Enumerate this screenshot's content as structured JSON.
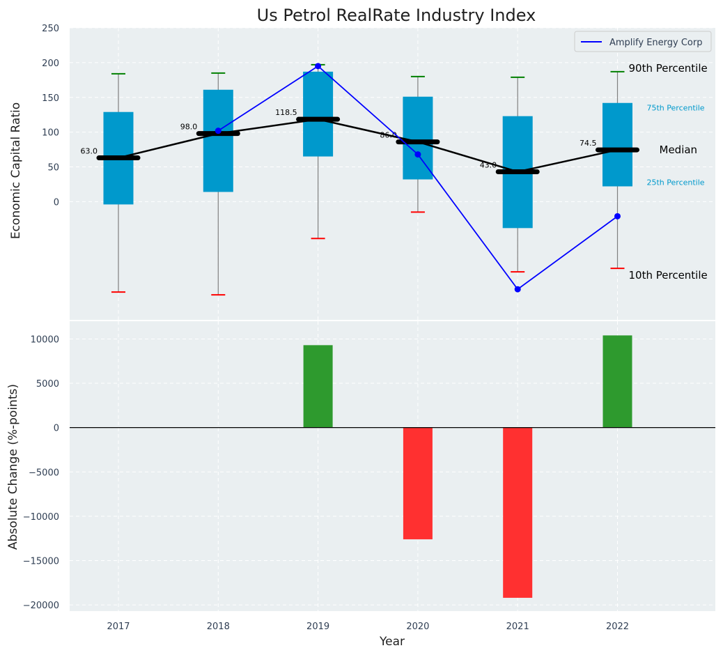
{
  "chart_data": [
    {
      "type": "box",
      "title": "Us Petrol RealRate Industry Index",
      "xlabel": "",
      "ylabel": "Economic Capital Ratio",
      "ylim": [
        -170,
        250
      ],
      "yticks": [
        0,
        50,
        100,
        150,
        200,
        250
      ],
      "grid": true,
      "categories": [
        "2017",
        "2018",
        "2019",
        "2020",
        "2021",
        "2022"
      ],
      "p10": [
        -130,
        -134,
        -53,
        -15,
        -101,
        -96
      ],
      "p25": [
        -4,
        14,
        65,
        32,
        -38,
        22
      ],
      "median": [
        63.0,
        98.0,
        118.5,
        86.0,
        43.0,
        74.5
      ],
      "p75": [
        129,
        161,
        187,
        151,
        123,
        142
      ],
      "p90": [
        184,
        185,
        197,
        180,
        179,
        187
      ],
      "median_labels": [
        "63.0",
        "98.0",
        "118.5",
        "86.0",
        "43.0",
        "74.5"
      ],
      "company_series": {
        "name": "Amplify Energy Corp",
        "values": [
          null,
          102,
          195,
          68,
          -126,
          -21
        ]
      },
      "legend": {
        "position": "top-right",
        "entries": [
          "Amplify Energy Corp"
        ]
      },
      "annotations": {
        "p90": "90th Percentile",
        "p75": "75th Percentile",
        "median": "Median",
        "p25": "25th Percentile",
        "p10": "10th Percentile"
      },
      "colors": {
        "background": "#eaeff1",
        "box": "#0099cc",
        "median": "#000000",
        "p90_cap": "#008000",
        "p10_cap": "#ff0000",
        "whisker": "#808080",
        "company_line": "#0000ff",
        "percentile_text": "#0099cc"
      }
    },
    {
      "type": "bar",
      "xlabel": "Year",
      "ylabel": "Absolute Change (%-points)",
      "ylim": [
        -20700,
        12000
      ],
      "yticks": [
        -20000,
        -15000,
        -10000,
        -5000,
        0,
        5000,
        10000
      ],
      "grid": true,
      "categories": [
        "2017",
        "2018",
        "2019",
        "2020",
        "2021",
        "2022"
      ],
      "values": [
        0,
        0,
        9300,
        -12600,
        -19200,
        10400
      ],
      "colors": {
        "positive": "#2e9a2e",
        "negative": "#ff3030",
        "zero_line": "#000000"
      }
    }
  ]
}
